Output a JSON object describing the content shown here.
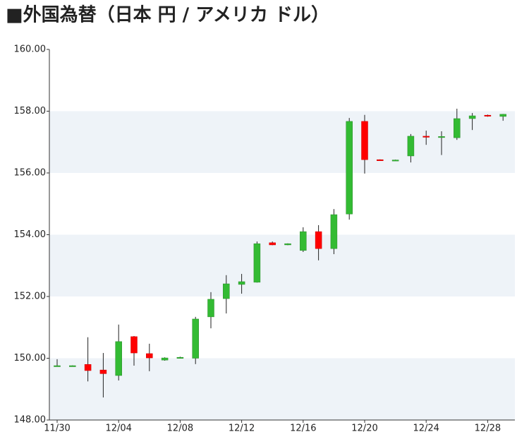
{
  "chart_data": {
    "type": "candlestick",
    "title": "■外国為替（日本 円 / アメリカ ドル）",
    "categories": [
      "11/30",
      null,
      null,
      null,
      "12/04",
      null,
      null,
      null,
      "12/08",
      null,
      null,
      null,
      "12/12",
      null,
      null,
      null,
      "12/16",
      null,
      null,
      null,
      "12/20",
      null,
      null,
      null,
      "12/24",
      null,
      null,
      null,
      "12/28",
      null
    ],
    "open": [
      149.75,
      149.74,
      149.8,
      149.62,
      149.44,
      150.7,
      150.15,
      149.94,
      150.0,
      150.0,
      151.34,
      151.93,
      152.39,
      152.46,
      153.74,
      153.67,
      153.49,
      154.1,
      153.55,
      154.67,
      157.67,
      156.43,
      156.41,
      156.55,
      157.19,
      157.16,
      157.14,
      157.76,
      157.87,
      157.83
    ],
    "high": [
      149.97,
      149.77,
      150.68,
      150.17,
      151.09,
      150.72,
      150.47,
      150.03,
      150.05,
      151.34,
      152.14,
      152.69,
      152.73,
      153.78,
      153.78,
      153.72,
      154.24,
      154.31,
      154.83,
      157.78,
      157.88,
      156.44,
      156.43,
      157.26,
      157.37,
      157.35,
      158.08,
      157.94,
      157.89,
      157.91
    ],
    "low": [
      149.74,
      149.73,
      149.25,
      148.73,
      149.28,
      149.76,
      149.58,
      149.92,
      149.99,
      149.81,
      150.97,
      151.45,
      152.09,
      152.45,
      153.66,
      153.66,
      153.44,
      153.17,
      153.37,
      154.49,
      155.98,
      156.4,
      156.4,
      156.34,
      156.91,
      156.58,
      157.07,
      157.39,
      157.82,
      157.69
    ],
    "close": [
      149.76,
      149.76,
      149.6,
      149.5,
      150.54,
      150.17,
      150.01,
      150.01,
      150.03,
      151.27,
      151.91,
      152.41,
      152.48,
      153.71,
      153.67,
      153.71,
      154.1,
      153.55,
      154.65,
      157.67,
      156.43,
      156.41,
      156.42,
      157.19,
      157.17,
      157.18,
      157.76,
      157.85,
      157.84,
      157.9
    ],
    "up_color": "#33bb33",
    "down_color": "#ff0000",
    "band_color": "#eef3f8",
    "ylim": [
      148,
      160
    ],
    "yticks": [
      {
        "value": 148,
        "label": "148.00"
      },
      {
        "value": 150,
        "label": "150.00"
      },
      {
        "value": 152,
        "label": "152.00"
      },
      {
        "value": 154,
        "label": "154.00"
      },
      {
        "value": 156,
        "label": "156.00"
      },
      {
        "value": 158,
        "label": "158.00"
      },
      {
        "value": 160,
        "label": "160.00"
      }
    ],
    "grid_bands": true
  }
}
